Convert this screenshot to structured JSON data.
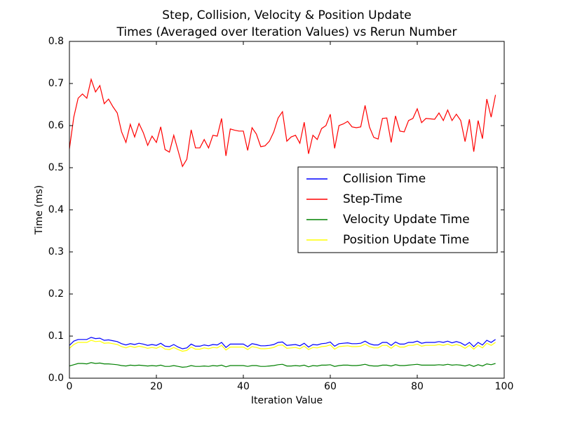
{
  "chart_data": {
    "type": "line",
    "title": [
      "Step, Collision, Velocity & Position Update",
      "Times (Averaged over Iteration Values) vs Rerun Number"
    ],
    "xlabel": "Iteration Value",
    "ylabel": "Time (ms)",
    "x": [
      0,
      1,
      2,
      3,
      4,
      5,
      6,
      7,
      8,
      9,
      10,
      11,
      12,
      13,
      14,
      15,
      16,
      17,
      18,
      19,
      20,
      21,
      22,
      23,
      24,
      25,
      26,
      27,
      28,
      29,
      30,
      31,
      32,
      33,
      34,
      35,
      36,
      37,
      38,
      39,
      40,
      41,
      42,
      43,
      44,
      45,
      46,
      47,
      48,
      49,
      50,
      51,
      52,
      53,
      54,
      55,
      56,
      57,
      58,
      59,
      60,
      61,
      62,
      63,
      64,
      65,
      66,
      67,
      68,
      69,
      70,
      71,
      72,
      73,
      74,
      75,
      76,
      77,
      78,
      79,
      80,
      81,
      82,
      83,
      84,
      85,
      86,
      87,
      88,
      89,
      90,
      91,
      92,
      93,
      94,
      95,
      96,
      97,
      98
    ],
    "series": [
      {
        "name": "Collision Time",
        "color": "#0000ff",
        "values": [
          0.078,
          0.088,
          0.092,
          0.092,
          0.092,
          0.097,
          0.094,
          0.095,
          0.09,
          0.091,
          0.089,
          0.087,
          0.082,
          0.079,
          0.082,
          0.08,
          0.083,
          0.081,
          0.078,
          0.08,
          0.078,
          0.083,
          0.076,
          0.075,
          0.08,
          0.074,
          0.07,
          0.072,
          0.081,
          0.076,
          0.076,
          0.079,
          0.077,
          0.08,
          0.079,
          0.085,
          0.073,
          0.081,
          0.081,
          0.081,
          0.081,
          0.075,
          0.082,
          0.08,
          0.077,
          0.077,
          0.078,
          0.08,
          0.085,
          0.086,
          0.078,
          0.079,
          0.08,
          0.077,
          0.083,
          0.074,
          0.08,
          0.079,
          0.082,
          0.083,
          0.086,
          0.076,
          0.082,
          0.083,
          0.084,
          0.082,
          0.082,
          0.083,
          0.088,
          0.082,
          0.079,
          0.079,
          0.085,
          0.085,
          0.078,
          0.086,
          0.081,
          0.081,
          0.085,
          0.085,
          0.088,
          0.083,
          0.085,
          0.085,
          0.085,
          0.087,
          0.085,
          0.088,
          0.084,
          0.087,
          0.084,
          0.078,
          0.085,
          0.075,
          0.085,
          0.079,
          0.09,
          0.085,
          0.092
        ]
      },
      {
        "name": "Step-Time",
        "color": "#ff0000",
        "values": [
          0.545,
          0.62,
          0.665,
          0.675,
          0.665,
          0.71,
          0.68,
          0.695,
          0.652,
          0.663,
          0.645,
          0.63,
          0.585,
          0.56,
          0.603,
          0.573,
          0.605,
          0.583,
          0.553,
          0.575,
          0.56,
          0.597,
          0.543,
          0.537,
          0.577,
          0.54,
          0.503,
          0.52,
          0.59,
          0.547,
          0.547,
          0.567,
          0.547,
          0.577,
          0.575,
          0.617,
          0.528,
          0.592,
          0.589,
          0.587,
          0.587,
          0.541,
          0.595,
          0.58,
          0.55,
          0.552,
          0.563,
          0.585,
          0.618,
          0.633,
          0.563,
          0.573,
          0.577,
          0.558,
          0.608,
          0.533,
          0.577,
          0.567,
          0.593,
          0.6,
          0.627,
          0.546,
          0.6,
          0.604,
          0.61,
          0.597,
          0.595,
          0.597,
          0.648,
          0.597,
          0.572,
          0.568,
          0.617,
          0.618,
          0.56,
          0.623,
          0.587,
          0.585,
          0.612,
          0.617,
          0.64,
          0.607,
          0.617,
          0.616,
          0.615,
          0.63,
          0.612,
          0.637,
          0.612,
          0.627,
          0.612,
          0.562,
          0.615,
          0.538,
          0.612,
          0.569,
          0.663,
          0.62,
          0.673
        ]
      },
      {
        "name": "Velocity Update Time",
        "color": "#008000",
        "values": [
          0.029,
          0.032,
          0.035,
          0.035,
          0.034,
          0.037,
          0.035,
          0.036,
          0.034,
          0.034,
          0.033,
          0.032,
          0.03,
          0.029,
          0.031,
          0.03,
          0.031,
          0.03,
          0.029,
          0.03,
          0.029,
          0.031,
          0.028,
          0.028,
          0.03,
          0.028,
          0.026,
          0.027,
          0.03,
          0.028,
          0.028,
          0.029,
          0.028,
          0.03,
          0.029,
          0.031,
          0.027,
          0.03,
          0.03,
          0.03,
          0.03,
          0.028,
          0.03,
          0.03,
          0.028,
          0.028,
          0.029,
          0.03,
          0.032,
          0.033,
          0.029,
          0.029,
          0.03,
          0.029,
          0.031,
          0.027,
          0.03,
          0.029,
          0.031,
          0.031,
          0.032,
          0.028,
          0.03,
          0.031,
          0.031,
          0.03,
          0.03,
          0.031,
          0.033,
          0.03,
          0.029,
          0.029,
          0.031,
          0.031,
          0.029,
          0.032,
          0.03,
          0.03,
          0.031,
          0.032,
          0.033,
          0.031,
          0.031,
          0.031,
          0.031,
          0.032,
          0.031,
          0.033,
          0.031,
          0.032,
          0.031,
          0.029,
          0.032,
          0.028,
          0.032,
          0.029,
          0.034,
          0.032,
          0.035
        ]
      },
      {
        "name": "Position Update Time",
        "color": "#ffff00",
        "values": [
          0.071,
          0.08,
          0.085,
          0.085,
          0.085,
          0.09,
          0.087,
          0.088,
          0.083,
          0.084,
          0.082,
          0.08,
          0.075,
          0.072,
          0.076,
          0.073,
          0.076,
          0.074,
          0.071,
          0.073,
          0.071,
          0.076,
          0.069,
          0.068,
          0.073,
          0.068,
          0.064,
          0.066,
          0.074,
          0.069,
          0.069,
          0.072,
          0.07,
          0.073,
          0.072,
          0.078,
          0.067,
          0.074,
          0.074,
          0.074,
          0.074,
          0.068,
          0.075,
          0.073,
          0.07,
          0.07,
          0.071,
          0.073,
          0.078,
          0.079,
          0.071,
          0.072,
          0.073,
          0.07,
          0.076,
          0.068,
          0.073,
          0.072,
          0.075,
          0.076,
          0.079,
          0.069,
          0.075,
          0.076,
          0.077,
          0.075,
          0.075,
          0.076,
          0.081,
          0.075,
          0.072,
          0.072,
          0.078,
          0.078,
          0.071,
          0.079,
          0.074,
          0.074,
          0.078,
          0.078,
          0.081,
          0.076,
          0.078,
          0.078,
          0.078,
          0.08,
          0.078,
          0.081,
          0.077,
          0.08,
          0.077,
          0.071,
          0.078,
          0.069,
          0.078,
          0.072,
          0.083,
          0.078,
          0.085
        ]
      }
    ],
    "xlim": [
      0,
      100
    ],
    "xticks": [
      0,
      20,
      40,
      60,
      80,
      100
    ],
    "ylim": [
      0,
      0.8
    ],
    "yticks": [
      {
        "value": 0,
        "label": "0.0"
      },
      0.1,
      0.2,
      0.3,
      0.4,
      0.5,
      0.6,
      0.7,
      0.8
    ],
    "grid": false,
    "legend": "center right"
  }
}
